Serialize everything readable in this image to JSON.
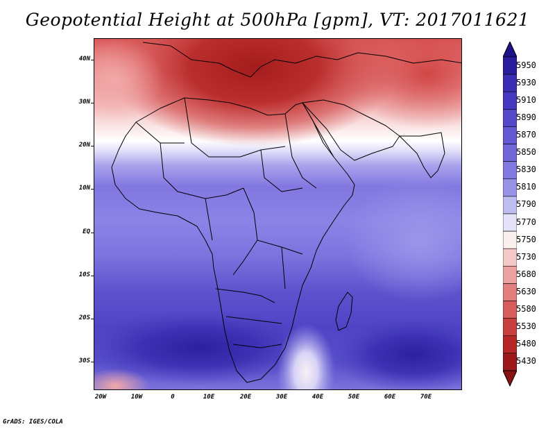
{
  "title": "Geopotential Height at 500hPa [gpm], VT: 2017011621",
  "credit": "GrADS: IGES/COLA",
  "map": {
    "lat_labels": [
      "40N",
      "30N",
      "20N",
      "10N",
      "EQ",
      "10S",
      "20S",
      "30S"
    ],
    "lon_labels": [
      "20W",
      "10W",
      "0",
      "10E",
      "20E",
      "30E",
      "40E",
      "50E",
      "60E",
      "70E"
    ]
  },
  "colorbar": {
    "levels": [
      "5950",
      "5930",
      "5910",
      "5890",
      "5870",
      "5850",
      "5830",
      "5810",
      "5790",
      "5770",
      "5750",
      "5730",
      "5680",
      "5630",
      "5580",
      "5530",
      "5480",
      "5430"
    ],
    "colors": [
      "#2a1c9c",
      "#3a2db4",
      "#4638bf",
      "#5548c8",
      "#6457d2",
      "#7266d9",
      "#8178e0",
      "#9a92e6",
      "#bfbcf0",
      "#e4e3fa",
      "#fbf0f0",
      "#f6c9c9",
      "#eda2a2",
      "#e47f7f",
      "#d75d5d",
      "#c93f3f",
      "#b62727",
      "#9c1a1a"
    ],
    "top_arrow_color": "#1f1288",
    "bottom_arrow_color": "#8a1111"
  }
}
